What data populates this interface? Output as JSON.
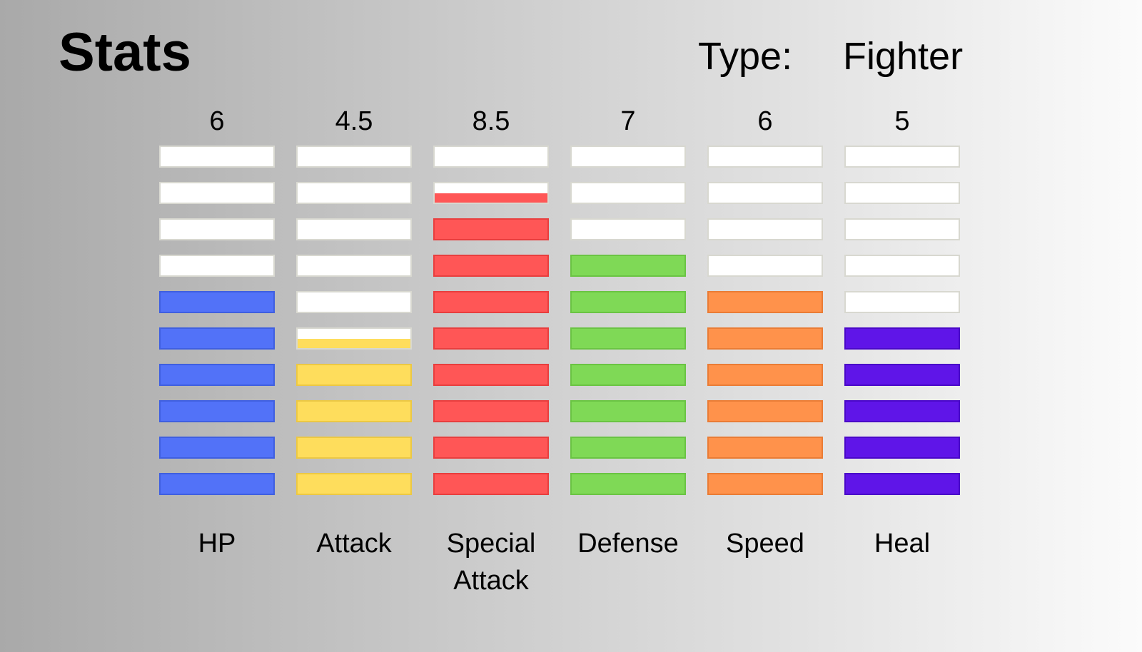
{
  "header": {
    "title": "Stats",
    "type_label": "Type:",
    "type_value": "Fighter"
  },
  "chart_data": {
    "type": "bar",
    "max_segments": 10,
    "categories": [
      "HP",
      "Attack",
      "Special Attack",
      "Defense",
      "Speed",
      "Heal"
    ],
    "stats": [
      {
        "label": "HP",
        "value_text": "6",
        "value": 6,
        "color": "#5272f8",
        "border": "#3f5fe0"
      },
      {
        "label": "Attack",
        "value_text": "4.5",
        "value": 4.5,
        "color": "#fedd5c",
        "border": "#ecc843"
      },
      {
        "label": "Special\nAttack",
        "value_text": "8.5",
        "value": 8.5,
        "color": "#ff5656",
        "border": "#e83e3e"
      },
      {
        "label": "Defense",
        "value_text": "7",
        "value": 7,
        "color": "#7fd956",
        "border": "#6ac443"
      },
      {
        "label": "Speed",
        "value_text": "6",
        "value": 6,
        "color": "#ff924b",
        "border": "#ea7c35"
      },
      {
        "label": "Heal",
        "value_text": "5",
        "value": 5,
        "color": "#5f15e8",
        "border": "#4a08c8"
      }
    ]
  }
}
